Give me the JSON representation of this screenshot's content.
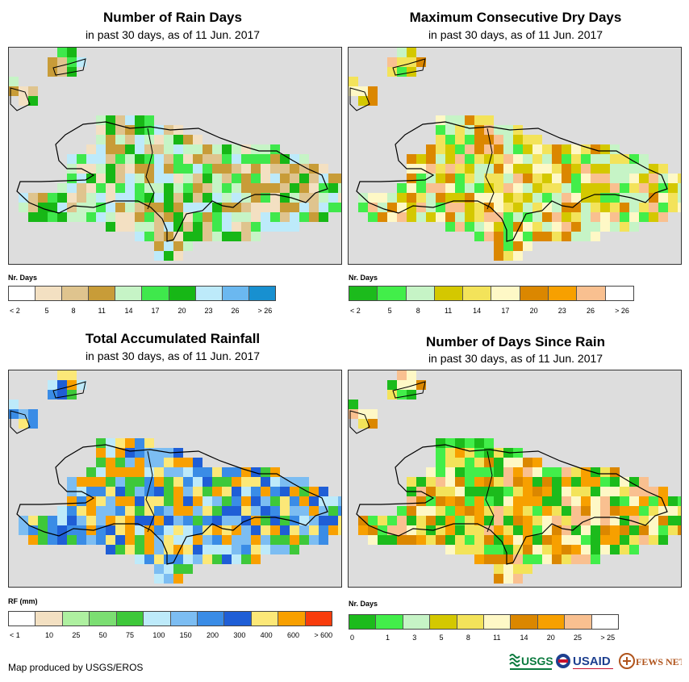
{
  "panels": [
    {
      "id": "rain-days",
      "title": "Number of Rain Days",
      "subtitle": "in past 30 days, as of 11 Jun. 2017",
      "legend_title": "Nr. Days",
      "legend_colors": [
        "#ffffff",
        "#f3e0c2",
        "#dfc48e",
        "#c89c38",
        "#c6f4c6",
        "#3fe84c",
        "#17b716",
        "#bdeafa",
        "#6bb8f0",
        "#1890d0"
      ],
      "legend_labels": [
        "< 2",
        "5",
        "8",
        "11",
        "14",
        "17",
        "20",
        "23",
        "26",
        "> 26"
      ]
    },
    {
      "id": "dry-days",
      "title": "Maximum Consecutive Dry Days",
      "subtitle": "in past 30 days, as of 11 Jun. 2017",
      "legend_title": "Nr. Days",
      "legend_colors": [
        "#1cbb1c",
        "#42ee4a",
        "#c6f4c6",
        "#d4c800",
        "#f3e35a",
        "#fef8c6",
        "#db8700",
        "#f7a000",
        "#f9c090",
        "#ffffff"
      ],
      "legend_labels": [
        "< 2",
        "5",
        "8",
        "11",
        "14",
        "17",
        "20",
        "23",
        "26",
        "> 26"
      ]
    },
    {
      "id": "rainfall",
      "title": "Total Accumulated Rainfall",
      "subtitle": "in past 30 days, as of 11 Jun. 2017",
      "legend_title": "RF (mm)",
      "legend_colors": [
        "#ffffff",
        "#f3e0c2",
        "#aef0a0",
        "#7bde72",
        "#3ec83a",
        "#bdeafa",
        "#7cbdf2",
        "#3a8ce6",
        "#1f5ed6",
        "#fce878",
        "#f8a000",
        "#f83c0c"
      ],
      "legend_labels": [
        "< 1",
        "10",
        "25",
        "50",
        "75",
        "100",
        "150",
        "200",
        "300",
        "400",
        "600",
        "> 600"
      ]
    },
    {
      "id": "days-since-rain",
      "title": "Number of Days Since Rain",
      "subtitle": "in past 30 days, as of 11 Jun. 2017",
      "legend_title": "Nr. Days",
      "legend_colors": [
        "#1cbb1c",
        "#42ee4a",
        "#c6f4c6",
        "#d4c800",
        "#f3e35a",
        "#fef8c6",
        "#db8700",
        "#f7a000",
        "#f9c090",
        "#ffffff"
      ],
      "legend_labels": [
        "0",
        "1",
        "3",
        "5",
        "8",
        "11",
        "14",
        "20",
        "25",
        "> 25"
      ]
    }
  ],
  "credit": "Map produced by USGS/EROS",
  "logos": {
    "usgs": "USGS",
    "usaid": "USAID",
    "fewsnet": "FEWS NET"
  }
}
